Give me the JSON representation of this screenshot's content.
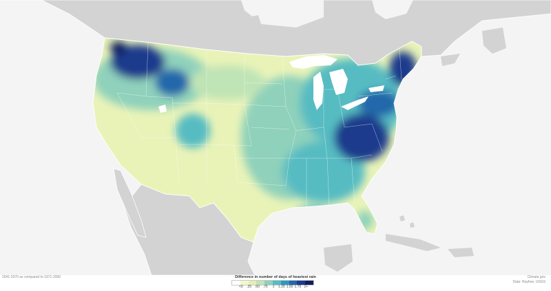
{
  "legend": {
    "title": "Difference in number of days of heaviest rain",
    "labels": [
      "<0",
      ".25",
      ".50",
      ".75",
      "1",
      "1.25",
      "1.50",
      "1.75",
      "2+"
    ],
    "colors": [
      "#ffffff",
      "#f3f8cf",
      "#e2f1b3",
      "#bfe4b5",
      "#8fd1bb",
      "#57bcc2",
      "#2f98c0",
      "#2467aa",
      "#1d3b8c",
      "#101e5e"
    ]
  },
  "period_text": "2041-2070 as compared to 1971-2000",
  "source": {
    "site": "Climate.gov",
    "data": "Data: Hayhoe, USGS"
  },
  "map_colors": {
    "ocean": "#f4f4f4",
    "land": "#d3d3d3",
    "lakes": "#ffffff"
  }
}
